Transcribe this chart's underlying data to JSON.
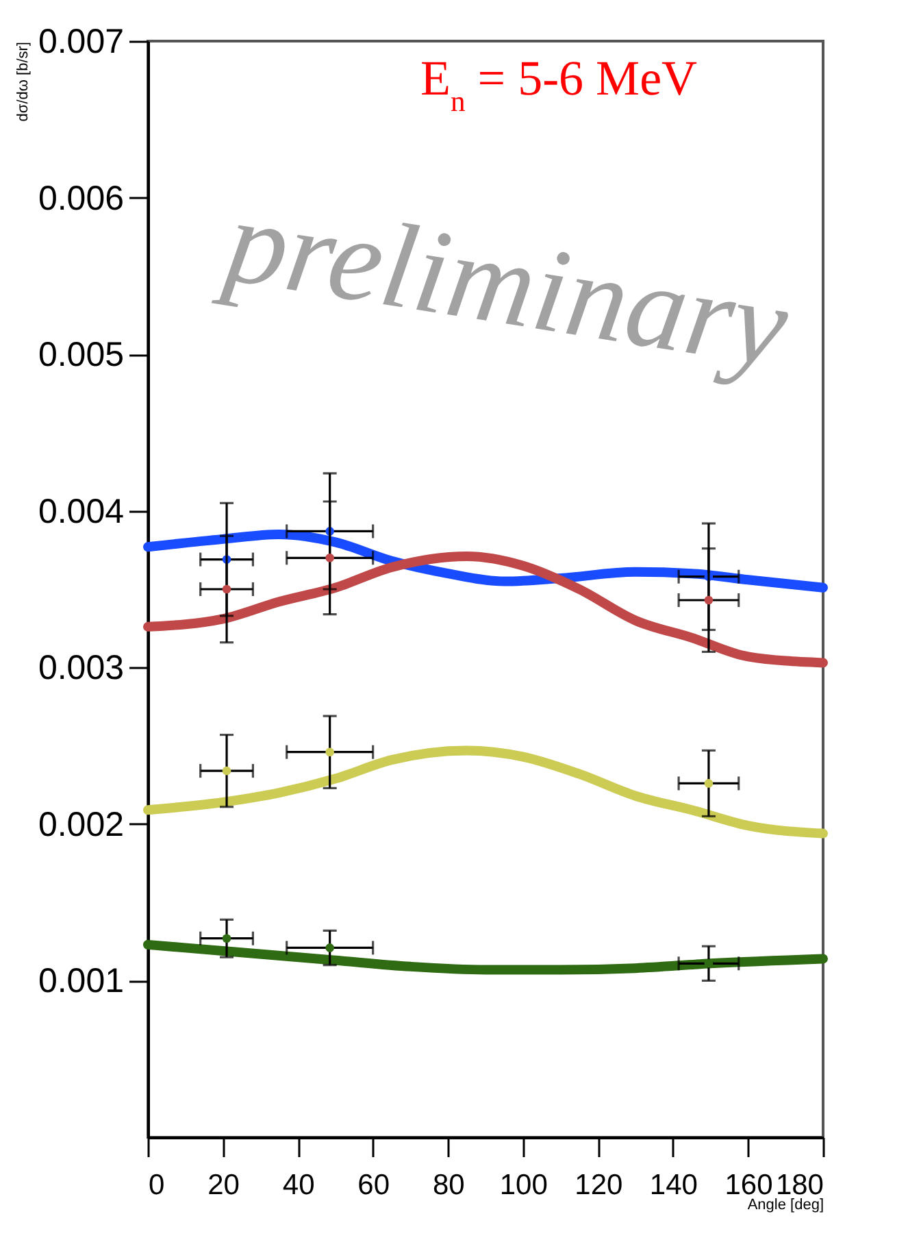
{
  "chart_data": {
    "type": "line",
    "title": "E$_{n}$ = 5-6 MeV",
    "xlabel": "Angle [deg]",
    "ylabel": "dσ/dω [b/sr]",
    "annotations": [
      "preliminary"
    ],
    "xlim": [
      0,
      180
    ],
    "xticks": [
      0,
      20,
      40,
      60,
      80,
      100,
      120,
      140,
      160,
      180
    ],
    "ylim": [
      0,
      0.007
    ],
    "yticks": [
      0.001,
      0.002,
      0.003,
      0.004,
      0.005,
      0.006,
      0.007
    ],
    "series": [
      {
        "type": "line",
        "color": "#1a4cff",
        "x": [
          0,
          20,
          35,
          50,
          65,
          80,
          95,
          110,
          130,
          145,
          160,
          180
        ],
        "values": [
          0.00377,
          0.00382,
          0.00385,
          0.0038,
          0.00368,
          0.0036,
          0.00355,
          0.00357,
          0.00361,
          0.0036,
          0.00356,
          0.00351
        ]
      },
      {
        "type": "line",
        "color": "#c04848",
        "x": [
          0,
          20,
          35,
          50,
          65,
          85,
          100,
          115,
          130,
          145,
          160,
          180
        ],
        "values": [
          0.00326,
          0.00331,
          0.00342,
          0.00351,
          0.00364,
          0.00371,
          0.00365,
          0.0035,
          0.0033,
          0.00319,
          0.00307,
          0.00303
        ]
      },
      {
        "type": "line",
        "color": "#cccc55",
        "x": [
          0,
          20,
          35,
          50,
          65,
          85,
          100,
          115,
          130,
          145,
          160,
          180
        ],
        "values": [
          0.00209,
          0.00214,
          0.0022,
          0.00229,
          0.00241,
          0.00247,
          0.00243,
          0.00232,
          0.00218,
          0.00209,
          0.00199,
          0.00194
        ]
      },
      {
        "type": "line",
        "color": "#2e6b12",
        "x": [
          0,
          20,
          50,
          70,
          90,
          110,
          130,
          150,
          180
        ],
        "values": [
          0.00123,
          0.00119,
          0.00113,
          0.00109,
          0.00107,
          0.00107,
          0.00108,
          0.00111,
          0.00114
        ]
      },
      {
        "type": "scatter",
        "color": "#1a4cff",
        "x": [
          21,
          48.5,
          149.5
        ],
        "values": [
          0.00369,
          0.00387,
          0.00358
        ],
        "errors": [
          0.00036,
          0.00037,
          0.00034
        ],
        "xerrors": [
          7,
          11.5,
          8
        ]
      },
      {
        "type": "scatter",
        "color": "#c04848",
        "x": [
          21,
          48.5,
          149.5
        ],
        "values": [
          0.0035,
          0.0037,
          0.00343
        ],
        "errors": [
          0.00034,
          0.00036,
          0.00033
        ],
        "xerrors": [
          7,
          11.5,
          8
        ]
      },
      {
        "type": "scatter",
        "color": "#cccc55",
        "x": [
          21,
          48.5,
          149.5
        ],
        "values": [
          0.00234,
          0.00246,
          0.00226
        ],
        "errors": [
          0.00023,
          0.00023,
          0.00021
        ],
        "xerrors": [
          7,
          11.5,
          8
        ]
      },
      {
        "type": "scatter",
        "color": "#2e6b12",
        "x": [
          21,
          48.5,
          149.5
        ],
        "values": [
          0.00127,
          0.00121,
          0.00111
        ],
        "errors": [
          0.00012,
          0.00011,
          0.00011
        ],
        "xerrors": [
          7,
          11.5,
          8
        ]
      }
    ]
  }
}
